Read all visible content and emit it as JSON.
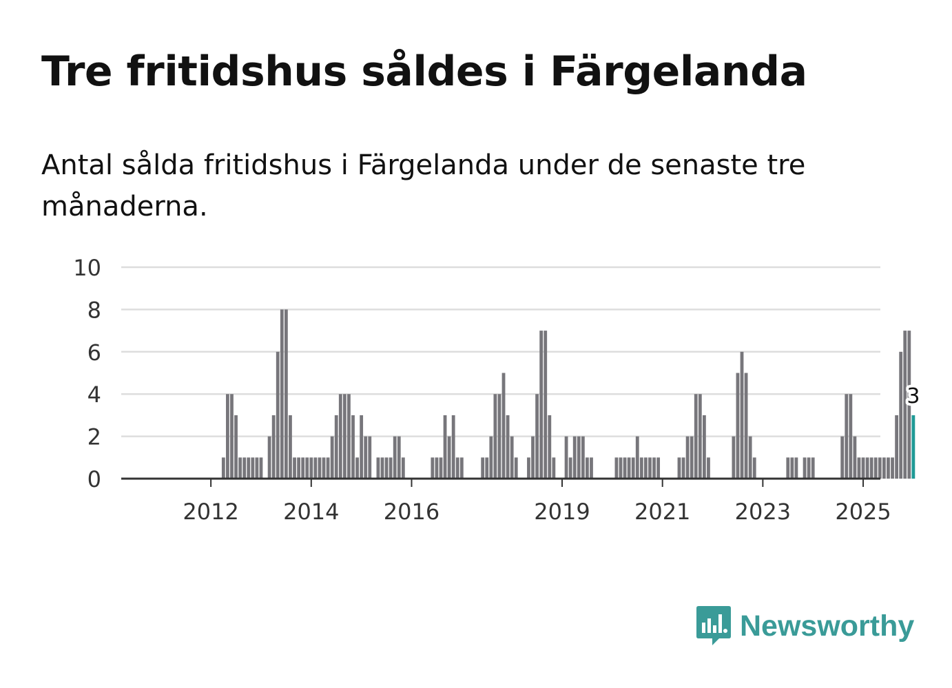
{
  "title": "Tre fritidshus såldes i Färgelanda",
  "subtitle": "Antal sålda fritidshus i Färgelanda under de senaste tre månaderna.",
  "brand": {
    "name": "Newsworthy",
    "color": "#3a9b98",
    "icon": "chart-speech-bubble-icon"
  },
  "colors": {
    "bar": "#77767b",
    "highlight": "#1f9a96",
    "grid": "#dddddd",
    "axis": "#333333"
  },
  "chart_data": {
    "type": "bar",
    "title": "Tre fritidshus såldes i Färgelanda",
    "subtitle": "Antal sålda fritidshus i Färgelanda under de senaste tre månaderna.",
    "xlabel": "",
    "ylabel": "",
    "ylim": [
      0,
      10
    ],
    "yticks": [
      0,
      2,
      4,
      6,
      8,
      10
    ],
    "grid": true,
    "x_start": "2011-03",
    "period_months": 3,
    "xtick_labels": [
      {
        "label": "2012",
        "index": 9
      },
      {
        "label": "2014",
        "index": 33
      },
      {
        "label": "2016",
        "index": 57
      },
      {
        "label": "2019",
        "index": 93
      },
      {
        "label": "2021",
        "index": 117
      },
      {
        "label": "2023",
        "index": 141
      },
      {
        "label": "2025",
        "index": 165
      }
    ],
    "values": [
      0,
      0,
      0,
      0,
      0,
      0,
      0,
      0,
      0,
      0,
      0,
      0,
      1,
      4,
      4,
      3,
      1,
      1,
      1,
      1,
      1,
      1,
      0,
      2,
      3,
      6,
      8,
      8,
      3,
      1,
      1,
      1,
      1,
      1,
      1,
      1,
      1,
      1,
      2,
      3,
      4,
      4,
      4,
      3,
      1,
      3,
      2,
      2,
      0,
      1,
      1,
      1,
      1,
      2,
      2,
      1,
      0,
      0,
      0,
      0,
      0,
      0,
      1,
      1,
      1,
      3,
      2,
      3,
      1,
      1,
      0,
      0,
      0,
      0,
      1,
      1,
      2,
      4,
      4,
      5,
      3,
      2,
      1,
      0,
      0,
      1,
      2,
      4,
      7,
      7,
      3,
      1,
      0,
      0,
      2,
      1,
      2,
      2,
      2,
      1,
      1,
      0,
      0,
      0,
      0,
      0,
      1,
      1,
      1,
      1,
      1,
      2,
      1,
      1,
      1,
      1,
      1,
      0,
      0,
      0,
      0,
      1,
      1,
      2,
      2,
      4,
      4,
      3,
      1,
      0,
      0,
      0,
      0,
      0,
      2,
      5,
      6,
      5,
      2,
      1,
      0,
      0,
      0,
      0,
      0,
      0,
      0,
      1,
      1,
      1,
      0,
      1,
      1,
      1,
      0,
      0,
      0,
      0,
      0,
      0,
      2,
      4,
      4,
      2,
      1,
      1,
      1,
      1,
      1,
      1,
      1,
      1,
      1,
      3,
      6,
      7,
      7,
      3
    ],
    "highlight_label": "3"
  }
}
